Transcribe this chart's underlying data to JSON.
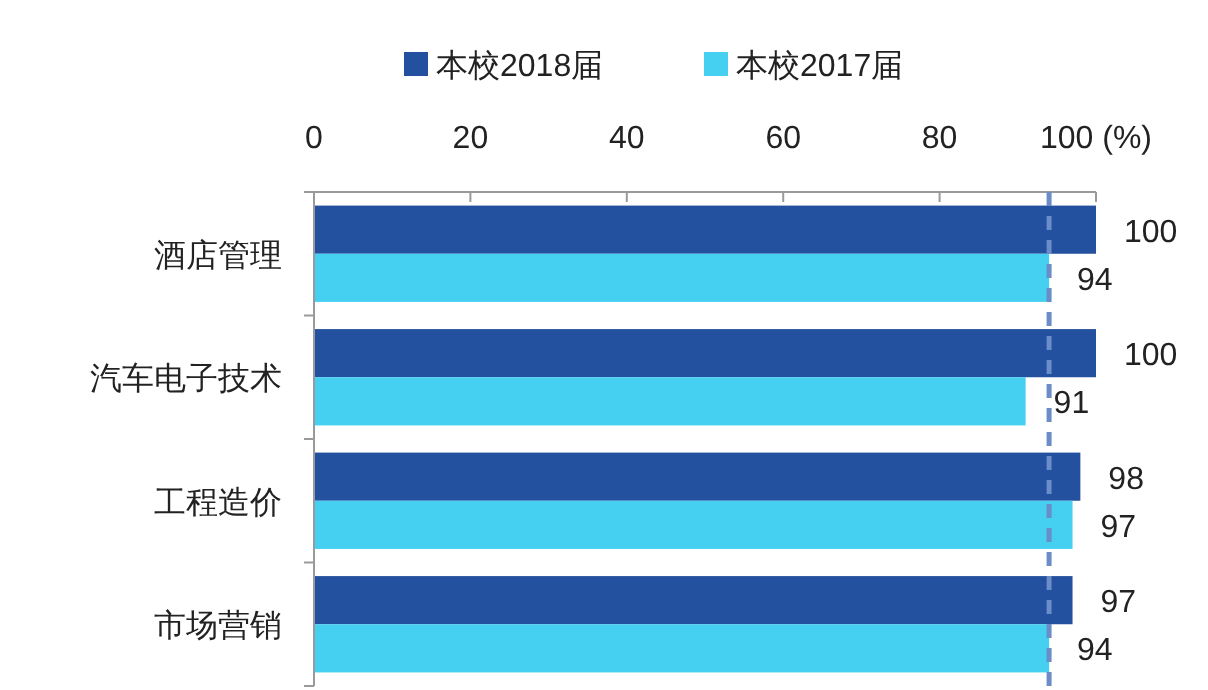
{
  "chart_data": {
    "type": "bar",
    "orientation": "horizontal",
    "categories": [
      "酒店管理",
      "汽车电子技术",
      "工程造价",
      "市场营销"
    ],
    "series": [
      {
        "name": "本校2018届",
        "color": "#23509f",
        "values": [
          100,
          100,
          98,
          97
        ]
      },
      {
        "name": "本校2017届",
        "color": "#45cff1",
        "values": [
          94,
          91,
          97,
          94
        ]
      }
    ],
    "xlim": [
      0,
      100
    ],
    "xticks": [
      0,
      20,
      40,
      60,
      80,
      {
        "value": 100,
        "label": "100 (%)"
      }
    ],
    "ref_lines": [
      {
        "axis": "x",
        "value": 94,
        "color": "#6a8cc7",
        "line_style": "dashed"
      }
    ],
    "data_labels": true,
    "legend": "top"
  }
}
